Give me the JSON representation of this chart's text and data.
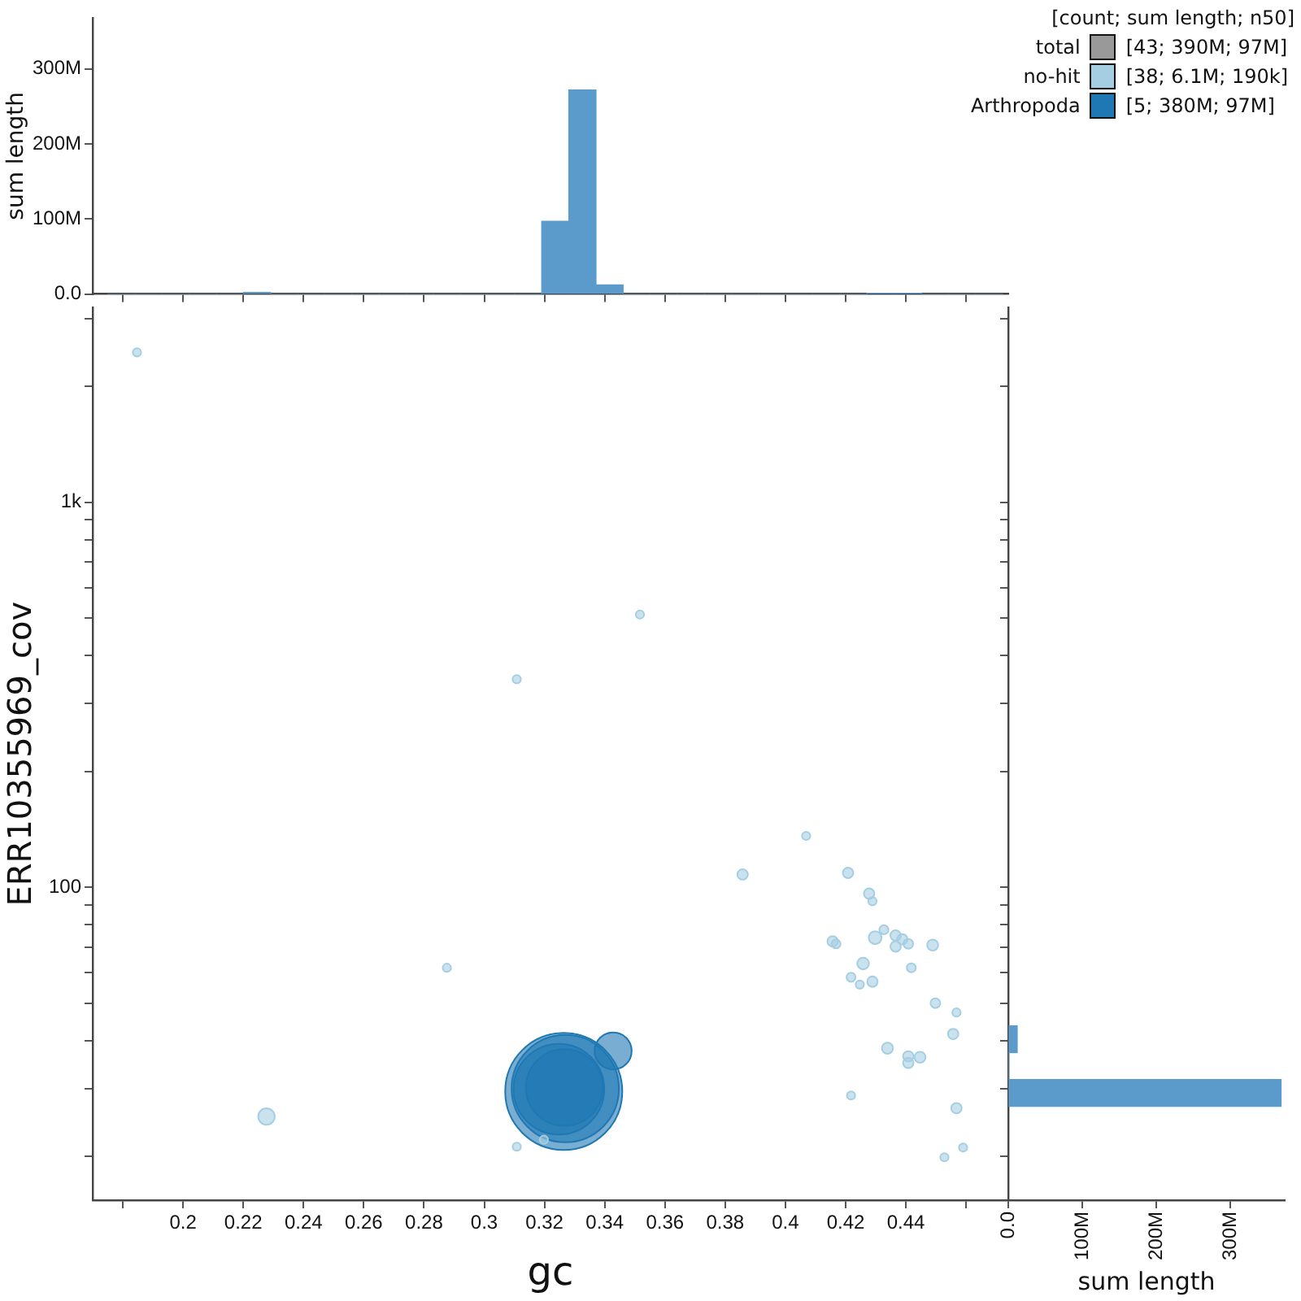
{
  "chart_data": [
    {
      "type": "histogram",
      "ylabel": "sum length",
      "color": "#5b9bcb",
      "bins": [
        0.1751,
        0.1841,
        0.1931,
        0.2021,
        0.2111,
        0.2201,
        0.2291,
        0.2381,
        0.2471,
        0.2561,
        0.2651,
        0.2741,
        0.2831,
        0.2921,
        0.3011,
        0.3101,
        0.3191,
        0.3281,
        0.3371,
        0.3461,
        0.3551,
        0.3641,
        0.3731,
        0.3821,
        0.3911,
        0.4001,
        0.4091,
        0.4181,
        0.4271,
        0.4361,
        0.4451,
        0.4541,
        0.4631,
        0.4721
      ],
      "values": [
        0,
        0,
        0,
        0,
        0,
        2000000,
        0,
        0,
        0,
        0,
        0,
        0,
        0,
        0,
        0,
        0,
        97000000,
        272000000,
        12000000,
        0,
        0,
        0,
        0,
        0,
        0,
        0,
        0,
        0,
        1000000,
        1000000,
        0,
        0,
        0
      ],
      "xlim": [
        0.17,
        0.474
      ],
      "xticks": [
        0.18,
        0.2,
        0.22,
        0.24,
        0.26,
        0.28,
        0.3,
        0.32,
        0.34,
        0.36,
        0.38,
        0.4,
        0.42,
        0.44,
        0.46
      ],
      "ylim": [
        0,
        368000000
      ],
      "yticks": [
        {
          "value": 0,
          "label": "0.0"
        },
        {
          "value": 100000000,
          "label": "100M"
        },
        {
          "value": 200000000,
          "label": "200M"
        },
        {
          "value": 300000000,
          "label": "300M"
        }
      ],
      "tick_labels": "y"
    },
    {
      "type": "bubble",
      "xlabel": "gc",
      "ylabel": "ERR10355969_cov",
      "log": "y",
      "legend": "top right",
      "legend_title": "[count; sum length; n50]",
      "annotations": [
        "[43; 390M; 97M]",
        "[38; 6.1M; 190k]",
        "[5; 380M; 97M]"
      ],
      "xlim": [
        0.17,
        0.474
      ],
      "xticks": [
        {
          "value": 0.18,
          "label": null
        },
        0.2,
        0.22,
        0.24,
        0.26,
        0.28,
        0.3,
        0.32,
        0.34,
        0.36,
        0.38,
        0.4,
        0.42,
        0.44,
        {
          "value": 0.46,
          "label": null
        }
      ],
      "ylim": [
        15.4,
        3200
      ],
      "yticks": [
        {
          "value": 20,
          "label": null
        },
        {
          "value": 30,
          "label": null
        },
        {
          "value": 40,
          "label": null
        },
        {
          "value": 50,
          "label": null
        },
        {
          "value": 60,
          "label": null
        },
        {
          "value": 70,
          "label": null
        },
        {
          "value": 80,
          "label": null
        },
        {
          "value": 90,
          "label": null
        },
        100,
        {
          "value": 200,
          "label": null
        },
        {
          "value": 300,
          "label": null
        },
        {
          "value": 400,
          "label": null
        },
        {
          "value": 500,
          "label": null
        },
        {
          "value": 600,
          "label": null
        },
        {
          "value": 700,
          "label": null
        },
        {
          "value": 800,
          "label": null
        },
        {
          "value": 900,
          "label": null
        },
        {
          "value": 1000,
          "label": "1k"
        },
        {
          "value": 2000,
          "label": null
        },
        {
          "value": 3000,
          "label": null
        }
      ],
      "series": [
        {
          "name": "total",
          "color": "#999999"
        },
        {
          "name": "no-hit",
          "color": "#a6cee3",
          "x": [
            0.1847,
            0.3517,
            0.3108,
            0.2876,
            0.2277,
            0.3108,
            0.3198,
            0.4069,
            0.3858,
            0.4208,
            0.4278,
            0.4289,
            0.4327,
            0.4157,
            0.4168,
            0.4298,
            0.4366,
            0.4388,
            0.4408,
            0.4366,
            0.4489,
            0.4258,
            0.4418,
            0.4218,
            0.4247,
            0.4289,
            0.4498,
            0.4568,
            0.4557,
            0.4339,
            0.4408,
            0.4447,
            0.4408,
            0.4218,
            0.4568,
            0.459,
            0.4528
          ],
          "values": [
            2450,
            511,
            347,
            61.8,
            25.4,
            21.2,
            22.1,
            136,
            108,
            109,
            96.3,
            92,
            77.6,
            72.4,
            71.3,
            74,
            75,
            73.3,
            71.3,
            70.2,
            70.8,
            63.4,
            61.8,
            58.4,
            55.9,
            56.9,
            50,
            47.3,
            41.6,
            38.2,
            36.4,
            36.2,
            35,
            28.8,
            26.7,
            21.1,
            19.9
          ],
          "sizes": [
            0.005,
            0.005,
            0.005,
            0.005,
            0.02,
            0.005,
            0.005,
            0.005,
            0.008,
            0.008,
            0.008,
            0.005,
            0.006,
            0.008,
            0.006,
            0.012,
            0.008,
            0.008,
            0.007,
            0.008,
            0.009,
            0.01,
            0.006,
            0.006,
            0.005,
            0.008,
            0.007,
            0.005,
            0.008,
            0.009,
            0.008,
            0.009,
            0.008,
            0.005,
            0.008,
            0.005,
            0.005
          ]
        },
        {
          "name": "Arthropoda",
          "color": "#1f78b4",
          "x": [
            0.3264,
            0.3269,
            0.3248,
            0.3266,
            0.3428
          ],
          "values": [
            29.5,
            30,
            29.9,
            30.2,
            37.6
          ],
          "sizes": [
            1,
            0.84,
            0.6,
            0.43,
            0.1
          ]
        }
      ]
    },
    {
      "type": "histogram",
      "orientation": "horizontal",
      "xlabel": "sum length",
      "color": "#5b9bcb",
      "log": "y",
      "bins": [
        27,
        31.7,
        37.2,
        43.7
      ],
      "values": [
        368000000,
        0,
        12000000
      ],
      "xlim": [
        0,
        373000000
      ],
      "xticks": [
        {
          "value": 0,
          "label": "0.0"
        },
        {
          "value": 100000000,
          "label": "100M"
        },
        {
          "value": 200000000,
          "label": "200M"
        },
        {
          "value": 300000000,
          "label": "300M"
        }
      ],
      "ylim": [
        15.4,
        3200
      ],
      "yticks": [
        20,
        30,
        40,
        50,
        60,
        70,
        80,
        90,
        100,
        200,
        300,
        400,
        500,
        600,
        700,
        800,
        900,
        1000,
        2000,
        3000
      ],
      "tick_labels": "x"
    }
  ]
}
